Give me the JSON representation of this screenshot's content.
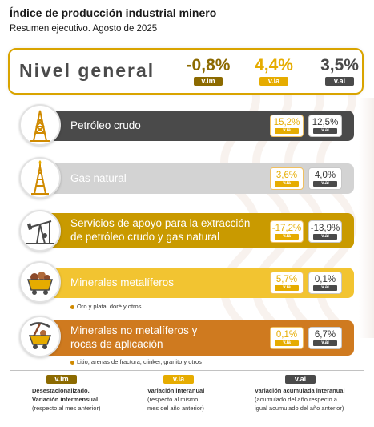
{
  "header": {
    "title": "Índice de producción industrial minero",
    "subtitle": "Resumen ejecutivo. Agosto de 2025"
  },
  "colors": {
    "vim": "#8c6a00",
    "via": "#e6ac00",
    "vai": "#4a4a4a",
    "general_border": "#d9a400"
  },
  "general": {
    "label": "Nivel general",
    "vim_value": "-0,8%",
    "via_value": "4,4%",
    "vai_value": "3,5%",
    "vim_badge": "v.im",
    "via_badge": "v.ia",
    "vai_badge": "v.ai"
  },
  "sectors": [
    {
      "label_line1": "Petróleo crudo",
      "label_line2": "",
      "icon": "oil-derrick-icon",
      "color": "#4a4a4a",
      "via": "15,2%",
      "vai": "12,5%",
      "via_badge": "v.ia",
      "vai_badge": "v.ai"
    },
    {
      "label_line1": "Gas natural",
      "label_line2": "",
      "icon": "gas-rig-icon",
      "color": "#d3d3d3",
      "via": "3,6%",
      "vai": "4,0%",
      "via_badge": "v.ia",
      "vai_badge": "v.ai"
    },
    {
      "label_line1": "Servicios de apoyo para la extracción",
      "label_line2": "de petróleo crudo y gas natural",
      "icon": "pumpjack-icon",
      "color": "#c99a00",
      "via": "-17,2%",
      "vai": "-13,9%",
      "via_badge": "v.ia",
      "vai_badge": "v.ai"
    },
    {
      "label_line1": "Minerales metalíferos",
      "label_line2": "",
      "icon": "mine-cart-icon",
      "color": "#f2c431",
      "via": "5,7%",
      "vai": "0,1%",
      "via_badge": "v.ia",
      "vai_badge": "v.ai",
      "note": "Oro y plata, doré y otros"
    },
    {
      "label_line1": "Minerales no metalíferos y",
      "label_line2": "rocas de aplicación",
      "icon": "pickaxe-cart-icon",
      "color": "#cf7a1f",
      "via": "0,1%",
      "vai": "6,7%",
      "via_badge": "v.ia",
      "vai_badge": "v.ai",
      "note": "Litio, arenas de fractura, clinker, granito y otros"
    }
  ],
  "legend": [
    {
      "badge": "v.im",
      "line1": "Desestacionalizado.",
      "line2": "Variación intermensual",
      "line3": "(respecto al mes anterior)"
    },
    {
      "badge": "v.ia",
      "line1": "Variación interanual",
      "line2": "(respecto al mismo",
      "line3": "mes del año anterior)"
    },
    {
      "badge": "v.ai",
      "line1": "Variación acumulada interanual",
      "line2": "(acumulado del año respecto a",
      "line3": "igual acumulado del año anterior)"
    }
  ]
}
